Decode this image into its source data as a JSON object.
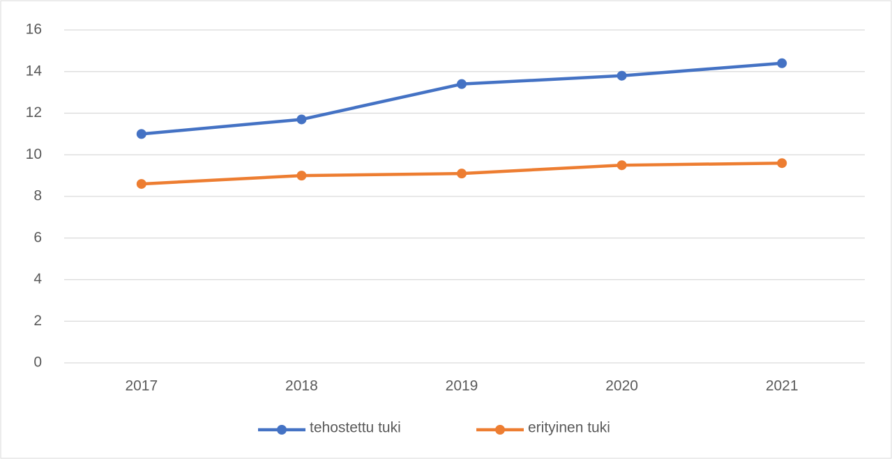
{
  "chart_data": {
    "type": "line",
    "categories": [
      "2017",
      "2018",
      "2019",
      "2020",
      "2021"
    ],
    "series": [
      {
        "name": "tehostettu tuki",
        "color": "#4472c4",
        "values": [
          11.0,
          11.7,
          13.4,
          13.8,
          14.4
        ]
      },
      {
        "name": "erityinen tuki",
        "color": "#ed7d31",
        "values": [
          8.6,
          9.0,
          9.1,
          9.5,
          9.6
        ]
      }
    ],
    "ylim": [
      0,
      16
    ],
    "yticks": [
      0,
      2,
      4,
      6,
      8,
      10,
      12,
      14,
      16
    ],
    "grid": true,
    "legend": "bottom"
  }
}
